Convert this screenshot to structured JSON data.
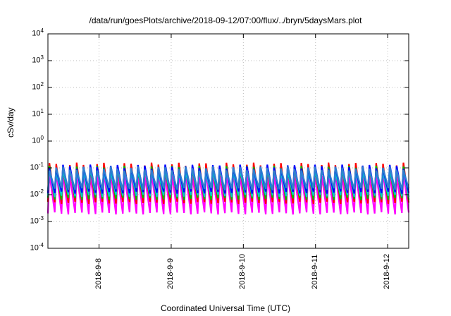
{
  "chart_data": {
    "type": "line",
    "title": "/data/run/goesPlots/archive/2018-09-12/07:00/flux/../bryn/5daysMars.plot",
    "xlabel": "Coordinated Universal Time (UTC)",
    "ylabel": "cSv/day",
    "y_scale": "log",
    "ylim": [
      0.0001,
      10000
    ],
    "xlim": [
      "2018-09-07T07:00",
      "2018-09-12T07:00"
    ],
    "y_ticks": [
      {
        "base": "10",
        "exp": "-4"
      },
      {
        "base": "10",
        "exp": "-3"
      },
      {
        "base": "10",
        "exp": "-2"
      },
      {
        "base": "10",
        "exp": "-1"
      },
      {
        "base": "10",
        "exp": "0"
      },
      {
        "base": "10",
        "exp": "1"
      },
      {
        "base": "10",
        "exp": "2"
      },
      {
        "base": "10",
        "exp": "3"
      },
      {
        "base": "10",
        "exp": "4"
      }
    ],
    "x_ticks": [
      "2018-9-8",
      "2018-9-9",
      "2018-9-10",
      "2018-9-11",
      "2018-9-12"
    ],
    "x_tick_times": [
      "2018-09-08T00:00",
      "2018-09-09T00:00",
      "2018-09-10T00:00",
      "2018-09-11T00:00",
      "2018-09-12T00:00"
    ],
    "grid": true,
    "cycles_per_day": 10.5,
    "series": [
      {
        "color": "#ff00ff",
        "peak": 0.06,
        "trough": 0.002
      },
      {
        "color": "#ff0000",
        "peak": 0.13,
        "trough": 0.005
      },
      {
        "color": "#00bb00",
        "peak": 0.1,
        "trough": 0.007
      },
      {
        "color": "#00cccc",
        "peak": 0.085,
        "trough": 0.009
      },
      {
        "color": "#0000ff",
        "peak": 0.11,
        "trough": 0.012
      },
      {
        "color": "#2f7fd0",
        "peak": 0.095,
        "trough": 0.016
      }
    ]
  }
}
